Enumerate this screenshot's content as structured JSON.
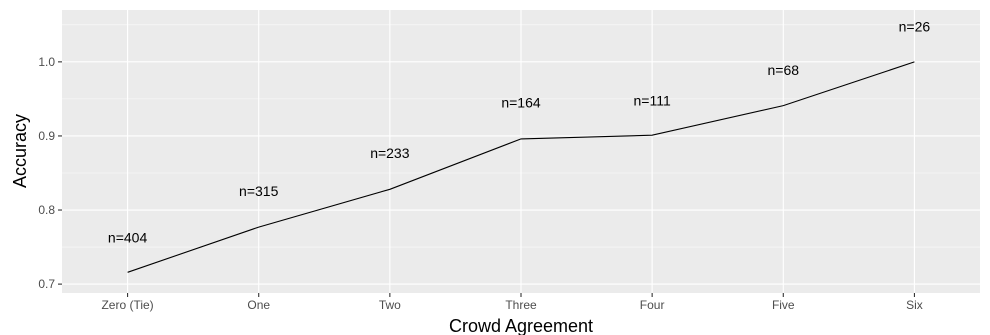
{
  "chart_data": {
    "type": "line",
    "xlabel": "Crowd Agreement",
    "ylabel": "Accuracy",
    "categories": [
      "Zero (Tie)",
      "One",
      "Two",
      "Three",
      "Four",
      "Five",
      "Six"
    ],
    "series": [
      {
        "values": [
          0.716,
          0.777,
          0.828,
          0.896,
          0.901,
          0.941,
          1.0
        ]
      }
    ],
    "labels": [
      "n=404",
      "n=315",
      "n=233",
      "n=164",
      "n=111",
      "n=68",
      "n=26"
    ],
    "label_values": [
      0.763,
      0.826,
      0.877,
      0.945,
      0.948,
      0.989,
      1.048
    ],
    "ylim": [
      0.688,
      1.07
    ],
    "yticks": [
      0.7,
      0.8,
      0.9,
      1.0
    ],
    "ytick_labels": [
      "0.7",
      "0.8",
      "0.9",
      "1.0"
    ],
    "grid": true,
    "legend": "none",
    "colors": {
      "panel": "#ebebeb",
      "grid_major": "#ffffff",
      "line": "#000000"
    }
  }
}
